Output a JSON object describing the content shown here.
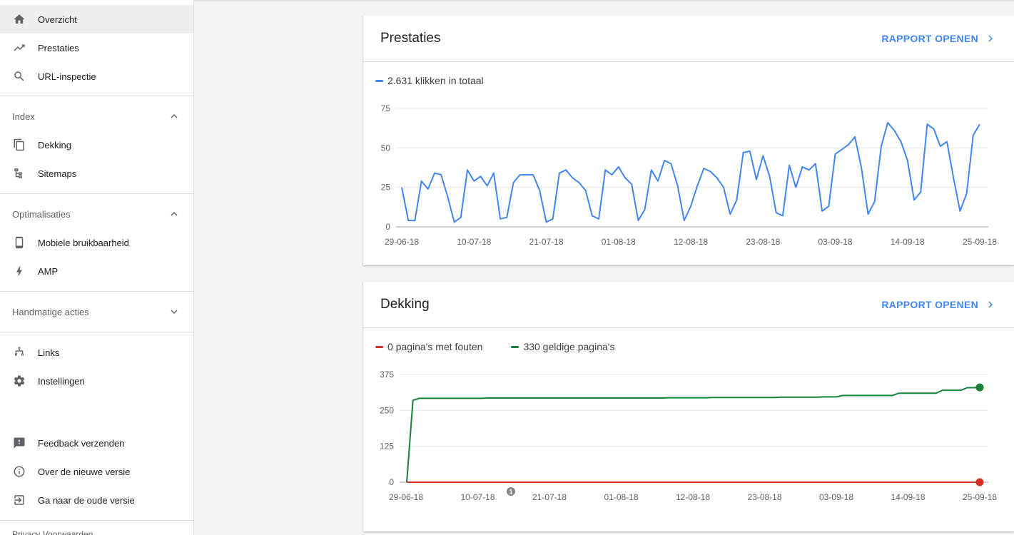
{
  "sidebar": {
    "top_items": [
      {
        "label": "Overzicht",
        "icon": "home-icon"
      },
      {
        "label": "Prestaties",
        "icon": "trending-up-icon"
      },
      {
        "label": "URL-inspectie",
        "icon": "search-icon"
      }
    ],
    "index": {
      "label": "Index",
      "items": [
        {
          "label": "Dekking",
          "icon": "copy-icon"
        },
        {
          "label": "Sitemaps",
          "icon": "sitemap-icon"
        }
      ]
    },
    "optimalisaties": {
      "label": "Optimalisaties",
      "items": [
        {
          "label": "Mobiele bruikbaarheid",
          "icon": "phone-icon"
        },
        {
          "label": "AMP",
          "icon": "bolt-icon"
        }
      ]
    },
    "handmatige": {
      "label": "Handmatige acties"
    },
    "other_items": [
      {
        "label": "Links",
        "icon": "links-icon"
      },
      {
        "label": "Instellingen",
        "icon": "gear-icon"
      }
    ],
    "bottom_items": [
      {
        "label": "Feedback verzenden",
        "icon": "feedback-icon"
      },
      {
        "label": "Over de nieuwe versie",
        "icon": "info-icon"
      },
      {
        "label": "Ga naar de oude versie",
        "icon": "exit-icon"
      }
    ],
    "truncated_text": "Privacy    Voorwaarden"
  },
  "colors": {
    "blue": "#4285f4",
    "green": "#188038",
    "red": "#d93025"
  },
  "prestaties_card": {
    "title": "Prestaties",
    "link": "RAPPORT OPENEN",
    "legend": "2.631 klikken in totaal"
  },
  "dekking_card": {
    "title": "Dekking",
    "link": "RAPPORT OPENEN",
    "legend_errors": "0 pagina's met fouten",
    "legend_valid": "330 geldige pagina's",
    "annotation": "1"
  },
  "chart_data": [
    {
      "type": "line",
      "title": "Prestaties",
      "ylim": [
        0,
        75
      ],
      "y_ticks": [
        "75",
        "50",
        "25",
        "0"
      ],
      "x_ticks": [
        "29-06-18",
        "10-07-18",
        "21-07-18",
        "01-08-18",
        "12-08-18",
        "23-08-18",
        "03-09-18",
        "14-09-18",
        "25-09-18"
      ],
      "series": [
        {
          "name": "2.631 klikken in totaal",
          "color": "#4285f4",
          "values": [
            25,
            4,
            4,
            29,
            24,
            34,
            33,
            19,
            3,
            6,
            36,
            29,
            32,
            26,
            34,
            5,
            6,
            28,
            33,
            33,
            33,
            23,
            3,
            5,
            34,
            36,
            31,
            28,
            23,
            7,
            5,
            36,
            33,
            38,
            31,
            27,
            4,
            11,
            36,
            29,
            42,
            40,
            26,
            4,
            13,
            26,
            37,
            35,
            31,
            25,
            8,
            17,
            47,
            48,
            30,
            45,
            32,
            9,
            7,
            39,
            25,
            38,
            36,
            40,
            10,
            13,
            46,
            49,
            52,
            57,
            37,
            8,
            16,
            51,
            66,
            61,
            54,
            42,
            17,
            22,
            65,
            62,
            51,
            54,
            31,
            10,
            21,
            58,
            65
          ]
        }
      ],
      "grid": true
    },
    {
      "type": "line",
      "title": "Dekking",
      "ylim": [
        0,
        375
      ],
      "y_ticks": [
        "375",
        "250",
        "125",
        "0"
      ],
      "x_ticks": [
        "29-06-18",
        "10-07-18",
        "21-07-18",
        "01-08-18",
        "12-08-18",
        "23-08-18",
        "03-09-18",
        "14-09-18",
        "25-09-18"
      ],
      "series": [
        {
          "name": "330 geldige pagina's",
          "color": "#188038",
          "values": [
            0,
            285,
            292,
            292,
            292,
            292,
            292,
            292,
            292,
            292,
            292,
            292,
            292,
            293,
            293,
            293,
            293,
            293,
            293,
            293,
            293,
            293,
            293,
            293,
            293,
            293,
            293,
            293,
            293,
            293,
            293,
            293,
            293,
            293,
            293,
            293,
            293,
            293,
            293,
            293,
            293,
            293,
            294,
            294,
            294,
            294,
            294,
            294,
            294,
            295,
            295,
            295,
            295,
            295,
            295,
            295,
            295,
            295,
            295,
            295,
            296,
            296,
            296,
            296,
            296,
            296,
            296,
            297,
            297,
            297,
            302,
            302,
            302,
            302,
            302,
            302,
            302,
            302,
            302,
            310,
            310,
            310,
            310,
            310,
            310,
            310,
            320,
            320,
            320,
            320,
            329,
            329,
            330
          ]
        },
        {
          "name": "0 pagina's met fouten",
          "color": "#d93025",
          "values": [
            0,
            0
          ]
        }
      ],
      "grid": true
    }
  ]
}
